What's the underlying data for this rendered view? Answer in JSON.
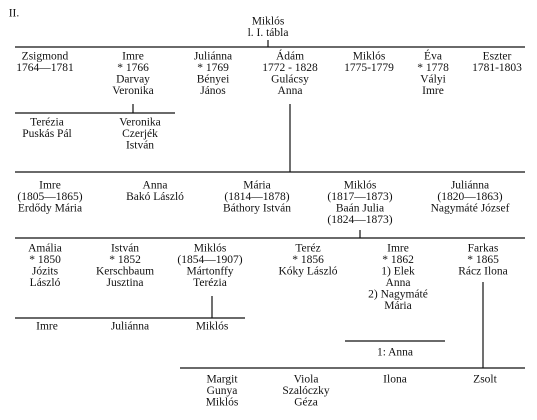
{
  "label": "II.",
  "nodes": [
    {
      "lines": [
        "Miklós",
        "l. I. tábla"
      ]
    },
    {
      "lines": [
        "Zsigmond",
        "1764—1781"
      ]
    },
    {
      "lines": [
        "Imre",
        "* 1766",
        "Darvay",
        "Veronika"
      ]
    },
    {
      "lines": [
        "Juliánna",
        "* 1769",
        "Bényei",
        "János"
      ]
    },
    {
      "lines": [
        "Ádám",
        "1772 - 1828",
        "Gulácsy",
        "Anna"
      ]
    },
    {
      "lines": [
        "Miklós",
        "1775-1779"
      ]
    },
    {
      "lines": [
        "Éva",
        "* 1778",
        "Vályi",
        "Imre"
      ]
    },
    {
      "lines": [
        "Eszter",
        "1781-1803"
      ]
    },
    {
      "lines": [
        "Terézia",
        "Puskás Pál"
      ]
    },
    {
      "lines": [
        "Veronika",
        "Czerjék",
        "István"
      ]
    },
    {
      "lines": [
        "Imre",
        "(1805—1865)",
        "Erdődy Mária"
      ]
    },
    {
      "lines": [
        "Anna",
        "Bakó László"
      ]
    },
    {
      "lines": [
        "Mária",
        "(1814—1878)",
        "Báthory István"
      ]
    },
    {
      "lines": [
        "Miklós",
        "(1817—1873)",
        "Baán Julia",
        "(1824—1873)"
      ]
    },
    {
      "lines": [
        "Juliánna",
        "(1820—1863)",
        "Nagymáté József"
      ]
    },
    {
      "lines": [
        "Amália",
        "* 1850",
        "Józits",
        "László"
      ]
    },
    {
      "lines": [
        "István",
        "* 1852",
        "Kerschbaum",
        "Jusztina"
      ]
    },
    {
      "lines": [
        "Miklós",
        "(1854—1907)",
        "Mártonffy",
        "Terézia"
      ]
    },
    {
      "lines": [
        "Teréz",
        "* 1856",
        "Kóky László"
      ]
    },
    {
      "lines": [
        "Imre",
        "* 1862",
        "1) Elek",
        "Anna",
        "2) Nagymáté",
        "Mária"
      ]
    },
    {
      "lines": [
        "Farkas",
        "* 1865",
        "Rácz Ilona"
      ]
    },
    {
      "lines": [
        "Imre"
      ]
    },
    {
      "lines": [
        "Juliánna"
      ]
    },
    {
      "lines": [
        "Miklós"
      ]
    },
    {
      "lines": [
        "1: Anna"
      ]
    },
    {
      "lines": [
        "Margit",
        "Gunya",
        "Miklós"
      ]
    },
    {
      "lines": [
        "Viola",
        "Szalóczky",
        "Géza"
      ]
    },
    {
      "lines": [
        "Ilona"
      ]
    },
    {
      "lines": [
        "Zsolt"
      ]
    }
  ]
}
